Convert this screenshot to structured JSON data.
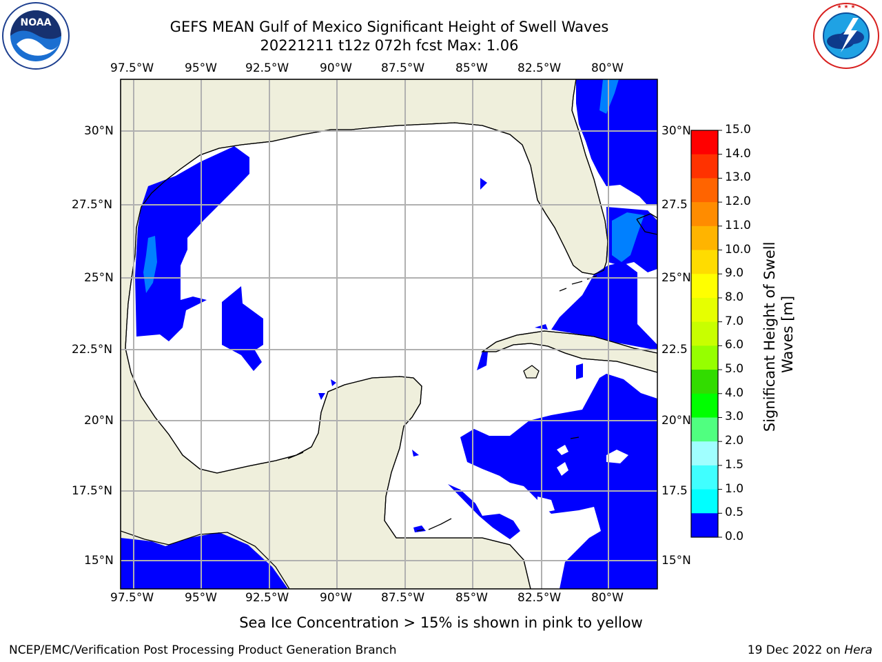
{
  "header": {
    "title_line1": "GEFS MEAN Gulf of Mexico Significant Height of Swell Waves",
    "title_line2": "20221211 t12z 072h fcst   Max: 1.06"
  },
  "logos": {
    "left": {
      "icon": "noaa-logo-icon",
      "center_text": "NOAA",
      "ring_text": "NATIONAL OCEANIC AND ATMOSPHERIC ADMINISTRATION · U.S. DEPARTMENT OF COMMERCE"
    },
    "right": {
      "icon": "nws-logo-icon",
      "ring_text": "NATIONAL WEATHER SERVICE"
    }
  },
  "map": {
    "lon_labels": [
      "97.5°W",
      "95°W",
      "92.5°W",
      "90°W",
      "87.5°W",
      "85°W",
      "82.5°W",
      "80°W"
    ],
    "lat_labels_left": [
      "30°N",
      "27.5°N",
      "25°N",
      "22.5°N",
      "20°N",
      "17.5°N",
      "15°N"
    ],
    "lat_labels_right": [
      "30°N",
      "27.5",
      "25°N",
      "22.5",
      "20°N",
      "17.5",
      "15°N"
    ],
    "colors": {
      "land": "#efefdc",
      "ocean": "#ffffff",
      "swell_low": "#0000ff",
      "swell_mid": "#0080ff",
      "grid": "#b0b0b0",
      "coast": "#000000"
    }
  },
  "colorbar": {
    "label": "Significant Height of Swell Waves [m]",
    "ticks": [
      "15.0",
      "14.0",
      "13.0",
      "12.0",
      "11.0",
      "10.0",
      "9.0",
      "8.0",
      "7.0",
      "6.0",
      "5.0",
      "4.0",
      "3.0",
      "2.0",
      "1.5",
      "1.0",
      "0.5",
      "0.0"
    ],
    "colors": [
      "#ff0000",
      "#ff3200",
      "#ff6400",
      "#ff8c00",
      "#ffb400",
      "#ffdc00",
      "#ffff00",
      "#e6ff00",
      "#c8ff00",
      "#96ff00",
      "#32dc00",
      "#00ff00",
      "#50ff80",
      "#a0ffff",
      "#40ffff",
      "#00ffff",
      "#0080ff",
      "#0000ff"
    ]
  },
  "subtitle": "Sea Ice Concentration > 15% is shown in pink to yellow",
  "footer": {
    "left": "NCEP/EMC/Verification Post Processing Product Generation Branch",
    "date": "19 Dec 2022 on ",
    "machine": "Hera"
  }
}
